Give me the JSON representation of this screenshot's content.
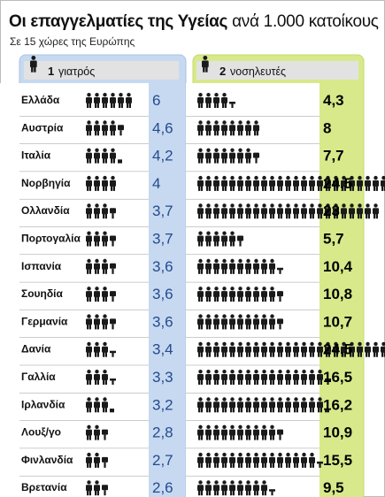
{
  "title": {
    "bold": "Οι επαγγελματίες της Υγείας",
    "normal": "ανά 1.000 κατοίκους"
  },
  "subtitle": "Σε 15 χώρες της Ευρώπης",
  "colors": {
    "doctor_panel": "#c6d9f0",
    "doctor_panel_border": "#a9c3e4",
    "nurse_panel": "#d7e98a",
    "nurse_panel_border": "#c4da6c",
    "header_bar": "#e2e2e2",
    "icon": "#1a1a1a",
    "doctor_value_text": "#244a8f",
    "row_separator": "#9a9a9a"
  },
  "chart_data": {
    "type": "pictogram",
    "title": "Οι επαγγελματίες της Υγείας ανά 1.000 κατοίκους",
    "subtitle": "Σε 15 χώρες της Ευρώπης",
    "legend": [
      {
        "num": "1",
        "label": "γιατρός",
        "icon": "person-icon"
      },
      {
        "num": "2",
        "label": "νοσηλευτές",
        "icon": "person-icon"
      }
    ],
    "unit": "ανά 1.000 κατοίκους",
    "categories": [
      "Ελλάδα",
      "Αυστρία",
      "Ιταλία",
      "Νορβηγία",
      "Ολλανδία",
      "Πορτογαλία",
      "Ισπανία",
      "Σουηδία",
      "Γερμανία",
      "Δανία",
      "Γαλλία",
      "Ιρλανδία",
      "Λουξ/γο",
      "Φινλανδία",
      "Βρετανία"
    ],
    "series": [
      {
        "name": "γιατρός",
        "values": [
          6,
          4.6,
          4.2,
          4,
          3.7,
          3.7,
          3.6,
          3.6,
          3.6,
          3.4,
          3.3,
          3.2,
          2.8,
          2.7,
          2.6
        ]
      },
      {
        "name": "νοσηλευτές",
        "values": [
          4.3,
          8,
          7.7,
          24.5,
          23,
          5.7,
          10.4,
          10.8,
          10.7,
          24.5,
          16.5,
          16.2,
          10.9,
          15.5,
          9.5
        ]
      }
    ],
    "value_labels": {
      "doctors": [
        "6",
        "4,6",
        "4,2",
        "4",
        "3,7",
        "3,7",
        "3,6",
        "3,6",
        "3,6",
        "3,4",
        "3,3",
        "3,2",
        "2,8",
        "2,7",
        "2,6"
      ],
      "nurses": [
        "4,3",
        "8",
        "7,7",
        "24,5",
        "23",
        "5,7",
        "10,4",
        "10,8",
        "10,7",
        "24,5",
        "16,5",
        "16,2",
        "10,9",
        "15,5",
        "9,5"
      ]
    }
  }
}
